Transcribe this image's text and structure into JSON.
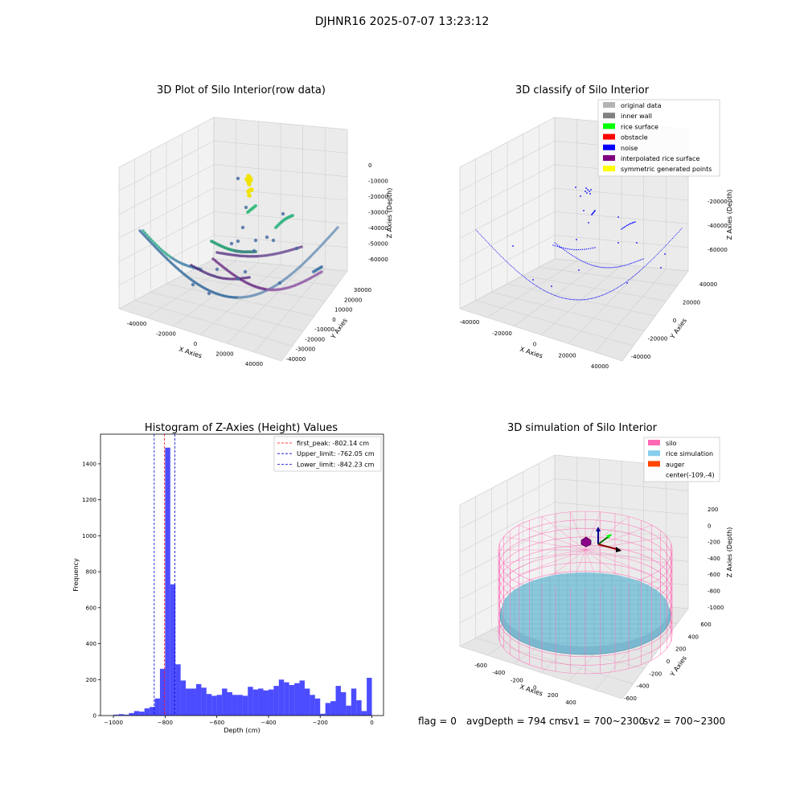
{
  "suptitle": "DJHNR16 2025-07-07 13:23:12",
  "footer": {
    "flag": "flag = 0",
    "avg_depth": "avgDepth = 794 cm",
    "sv1": "sv1 = 700~2300",
    "sv2": "sv2 = 700~2300"
  },
  "chart_data": [
    {
      "type": "scatter",
      "projection": "3d",
      "title": "3D Plot of Silo Interior(row data)",
      "xlabel": "X Axies",
      "ylabel": "Y Axies",
      "zlabel": "Z Axies (Depth)",
      "x_ticks": [
        "-40000",
        "-20000",
        "0",
        "20000",
        "40000"
      ],
      "y_ticks": [
        "30000",
        "20000",
        "10000",
        "0",
        "-10000",
        "-20000",
        "-30000",
        "-40000"
      ],
      "z_ticks": [
        "0",
        "-10000",
        "-20000",
        "-30000",
        "-40000",
        "-50000",
        "-60000"
      ],
      "xlim": [
        -45000,
        45000
      ],
      "ylim": [
        -45000,
        35000
      ],
      "zlim": [
        -65000,
        0
      ],
      "color_by": "z (viridis)",
      "grid": true
    },
    {
      "type": "scatter",
      "projection": "3d",
      "title": "3D classify of Silo Interior",
      "xlabel": "X Axies",
      "ylabel": "Y Axies",
      "zlabel": "Z Axies (Depth)",
      "x_ticks": [
        "-40000",
        "-20000",
        "0",
        "20000",
        "40000"
      ],
      "y_ticks": [
        "40000",
        "20000",
        "0",
        "-20000",
        "-40000"
      ],
      "z_ticks": [
        "-20000",
        "-40000",
        "-60000"
      ],
      "legend": [
        {
          "name": "original data",
          "color": "#b3b3b3"
        },
        {
          "name": "inner wall",
          "color": "#808080"
        },
        {
          "name": "rice surface",
          "color": "#00ff00"
        },
        {
          "name": "obstacle",
          "color": "#ff0000"
        },
        {
          "name": "noise",
          "color": "#0000ff"
        },
        {
          "name": "interpolated rice surface",
          "color": "#800080"
        },
        {
          "name": "symmetric generated points",
          "color": "#ffff00"
        }
      ],
      "legend_loc": "upper right",
      "grid": true
    },
    {
      "type": "bar",
      "title": "Histogram of Z-Axies (Height) Values",
      "xlabel": "Depth (cm)",
      "ylabel": "Frequency",
      "x_ticks": [
        "−1000",
        "−800",
        "−600",
        "−400",
        "−200",
        "0"
      ],
      "y_ticks": [
        "0",
        "200",
        "400",
        "600",
        "800",
        "1000",
        "1200",
        "1400"
      ],
      "xlim": [
        -1050,
        45
      ],
      "ylim": [
        0,
        1565
      ],
      "bin_width": 20,
      "bin_start": -1000,
      "bar_color": "#0000ff",
      "values": [
        5,
        8,
        5,
        14,
        25,
        22,
        40,
        48,
        95,
        260,
        1490,
        730,
        285,
        195,
        150,
        150,
        175,
        155,
        120,
        110,
        115,
        150,
        130,
        115,
        115,
        110,
        160,
        145,
        150,
        140,
        145,
        165,
        200,
        185,
        170,
        180,
        195,
        150,
        115,
        95,
        10,
        70,
        80,
        165,
        130,
        55,
        150,
        85,
        25,
        210
      ],
      "vlines": [
        {
          "name": "first_peak: -802.14 cm",
          "value": -802.14,
          "color": "#ff0000"
        },
        {
          "name": "Upper_limit: -762.05 cm",
          "value": -762.05,
          "color": "#0000cc"
        },
        {
          "name": "Lower_limit: -842.23 cm",
          "value": -842.23,
          "color": "#0000cc"
        }
      ],
      "legend_loc": "upper right"
    },
    {
      "type": "surface",
      "projection": "3d",
      "title": "3D simulation of Silo Interior",
      "xlabel": "X Axies",
      "ylabel": "Y Axies",
      "zlabel": "Z Axies (Depth)",
      "x_ticks": [
        "-600",
        "-400",
        "-200",
        "0",
        "200",
        "400"
      ],
      "y_ticks": [
        "600",
        "400",
        "200",
        "0",
        "-200",
        "-400",
        "-600"
      ],
      "z_ticks": [
        "200",
        "0",
        "-200",
        "-400",
        "-600",
        "-800",
        "-1000"
      ],
      "legend": [
        {
          "name": "silo",
          "color": "#ff69b4"
        },
        {
          "name": "rice simulation",
          "color": "#87ceeb"
        },
        {
          "name": "auger",
          "color": "#ff4500"
        },
        {
          "name": "center(-109,-4)",
          "color": ""
        }
      ],
      "legend_loc": "upper right",
      "grid": true
    }
  ]
}
